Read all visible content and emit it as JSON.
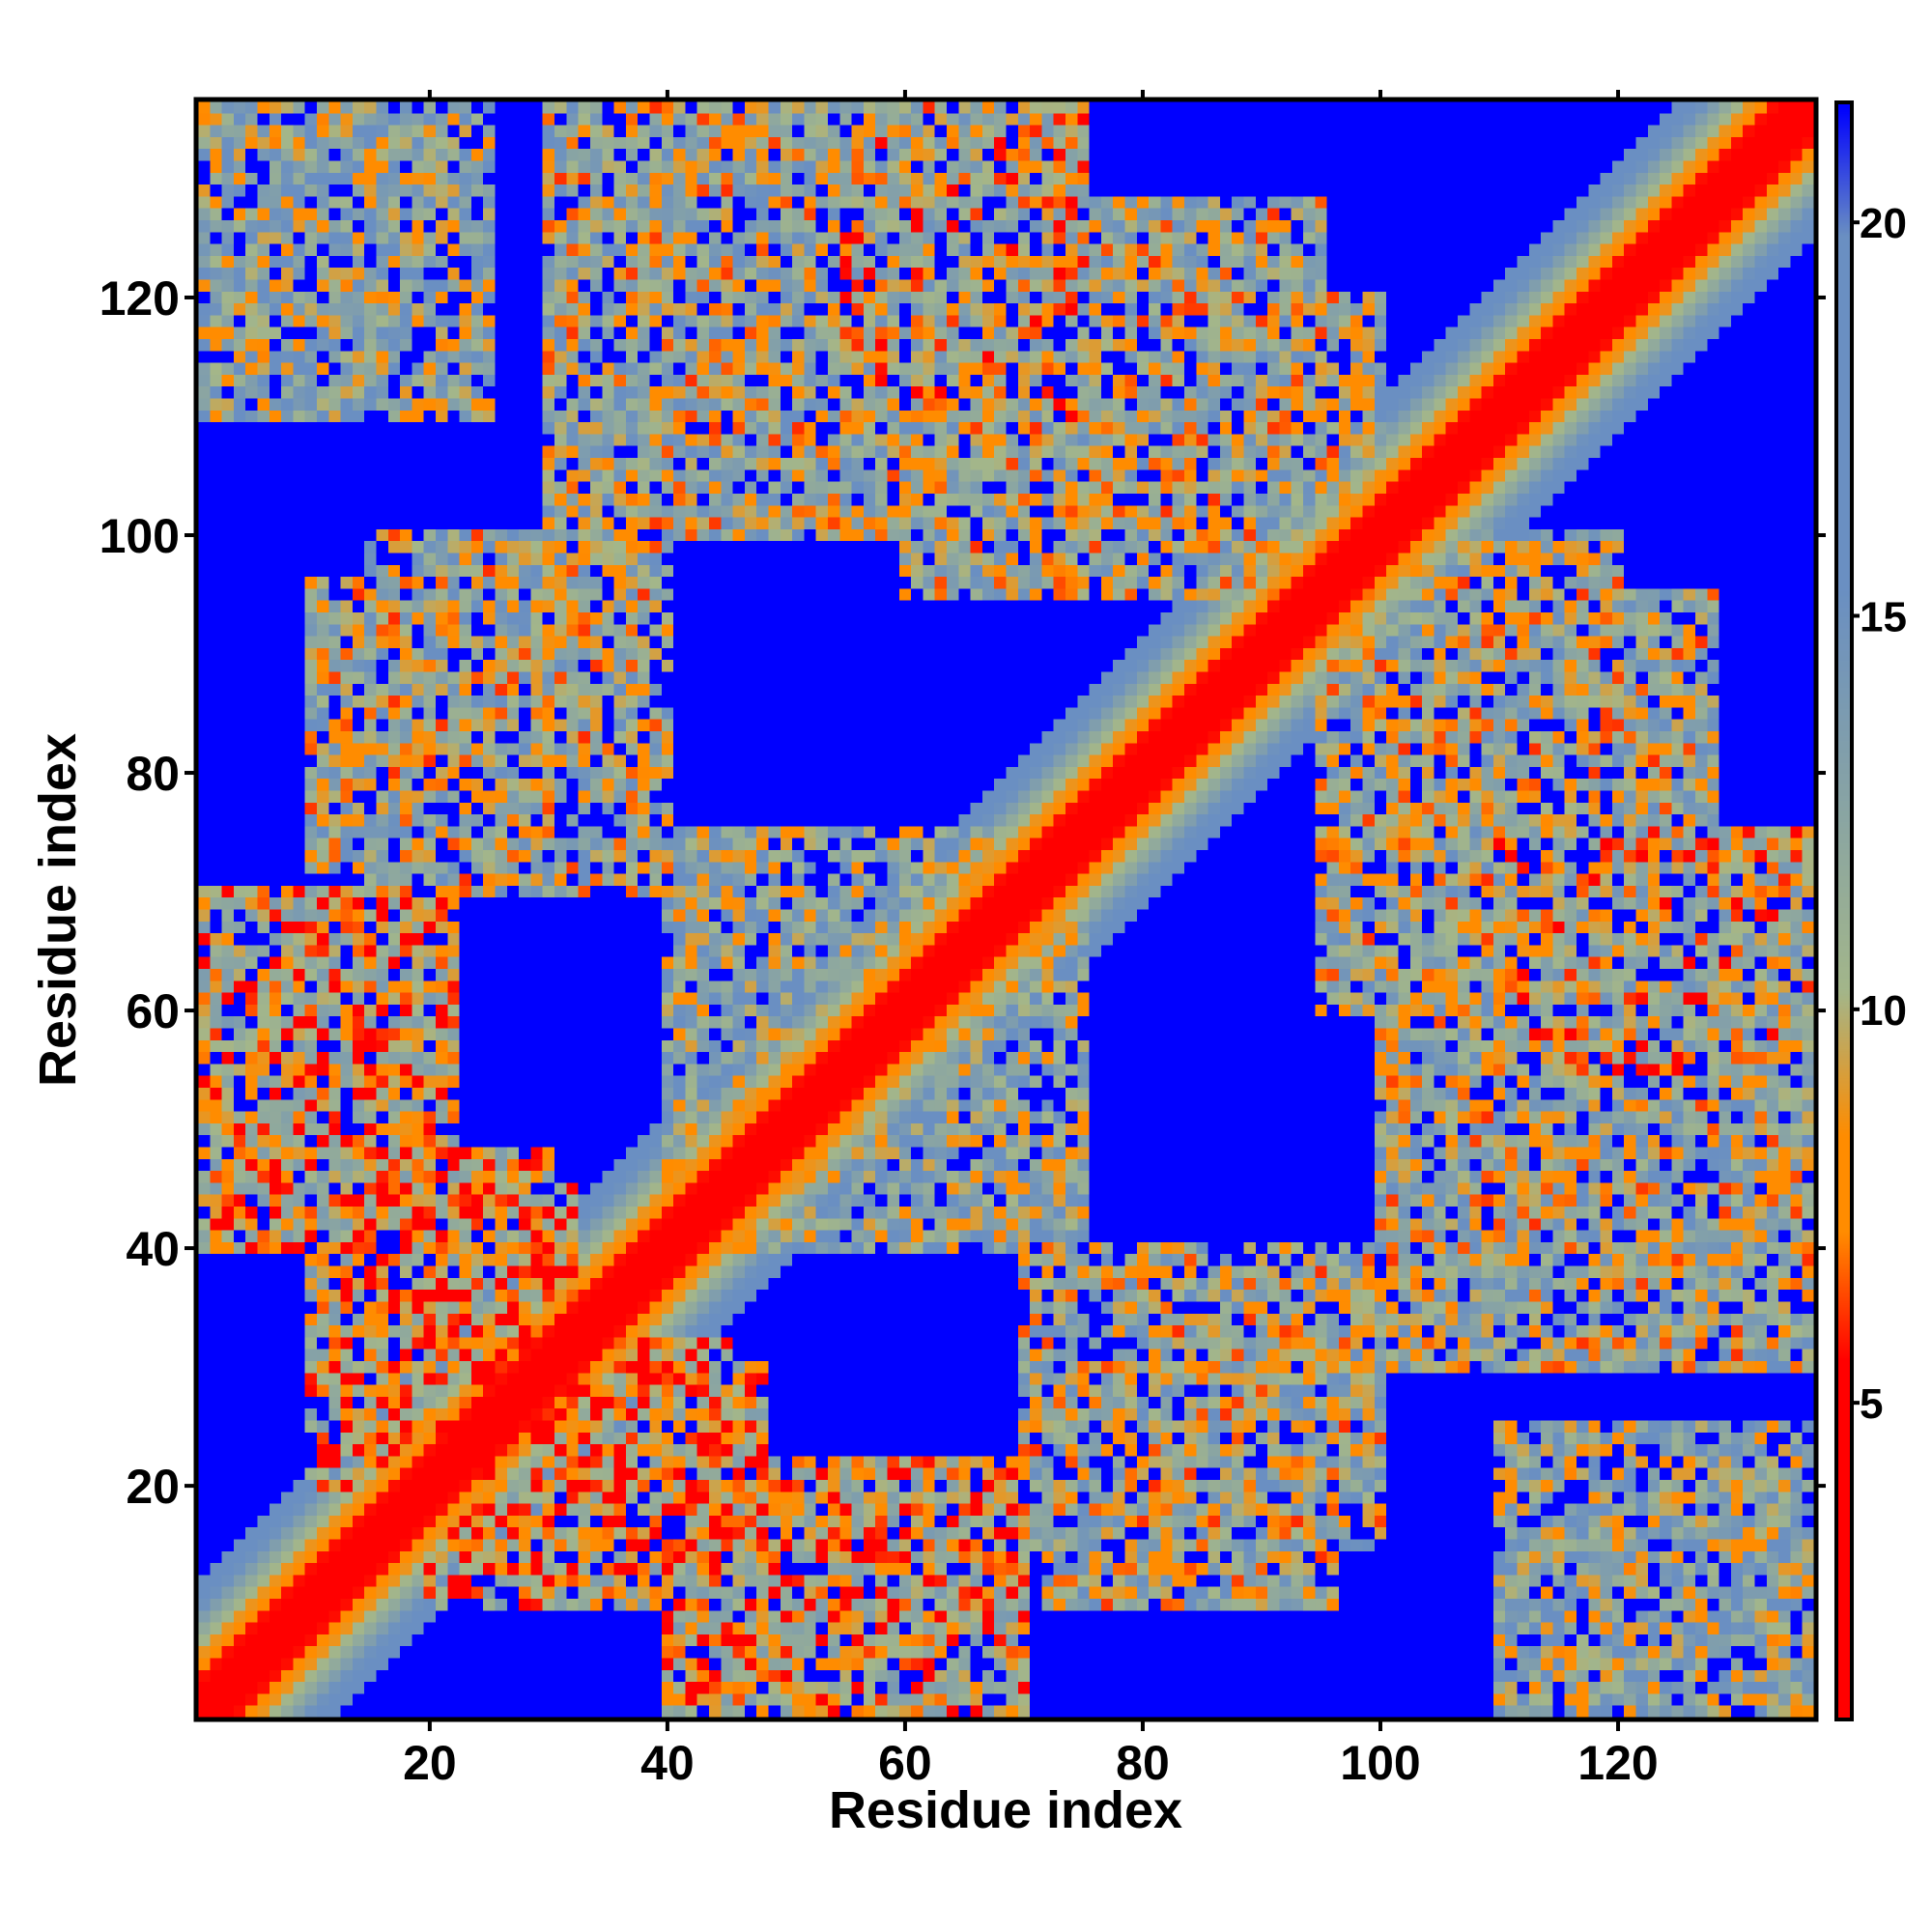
{
  "chart_data": {
    "type": "heatmap",
    "title": "",
    "xlabel": "Residue index",
    "ylabel": "Residue index",
    "n_residues": 136,
    "xlim": [
      1,
      136
    ],
    "ylim": [
      1,
      136
    ],
    "x_ticks": [
      20,
      40,
      60,
      80,
      100,
      120
    ],
    "y_ticks": [
      20,
      40,
      60,
      80,
      100,
      120
    ],
    "colorbar": {
      "range": [
        1,
        21.5
      ],
      "ticks": [
        5,
        10,
        15,
        20
      ],
      "colors": {
        "low": "#ff0000",
        "mid_low": "#ff8c00",
        "mid": "#a3b68a",
        "mid_high": "#6a8fc2",
        "high": "#0000ff"
      }
    },
    "diagonal_band": {
      "value_on_diagonal": 1,
      "description": "distance increases away from diagonal"
    },
    "contact_regions": [
      {
        "x": [
          1,
          25
        ],
        "y": [
          110,
          136
        ],
        "mean_value": 12
      },
      {
        "x": [
          30,
          65
        ],
        "y": [
          100,
          136
        ],
        "mean_value": 11
      },
      {
        "x": [
          60,
          95
        ],
        "y": [
          95,
          128
        ],
        "mean_value": 11
      },
      {
        "x": [
          10,
          40
        ],
        "y": [
          72,
          96
        ],
        "mean_value": 11
      },
      {
        "x": [
          1,
          15
        ],
        "y": [
          46,
          68
        ],
        "mean_value": 9
      },
      {
        "x": [
          10,
          30
        ],
        "y": [
          20,
          48
        ],
        "mean_value": 9
      },
      {
        "x": [
          20,
          45
        ],
        "y": [
          15,
          32
        ],
        "mean_value": 8
      },
      {
        "x": [
          40,
          70
        ],
        "y": [
          1,
          22
        ],
        "mean_value": 9
      },
      {
        "x": [
          70,
          100
        ],
        "y": [
          15,
          40
        ],
        "mean_value": 11
      },
      {
        "x": [
          100,
          120
        ],
        "y": [
          80,
          100
        ],
        "mean_value": 11
      },
      {
        "x": [
          110,
          136
        ],
        "y": [
          55,
          75
        ],
        "mean_value": 10
      },
      {
        "x": [
          110,
          130
        ],
        "y": [
          30,
          50
        ],
        "mean_value": 11
      },
      {
        "x": [
          110,
          136
        ],
        "y": [
          1,
          22
        ],
        "mean_value": 13
      },
      {
        "x": [
          45,
          75
        ],
        "y": [
          40,
          72
        ],
        "mean_value": 12
      }
    ]
  }
}
